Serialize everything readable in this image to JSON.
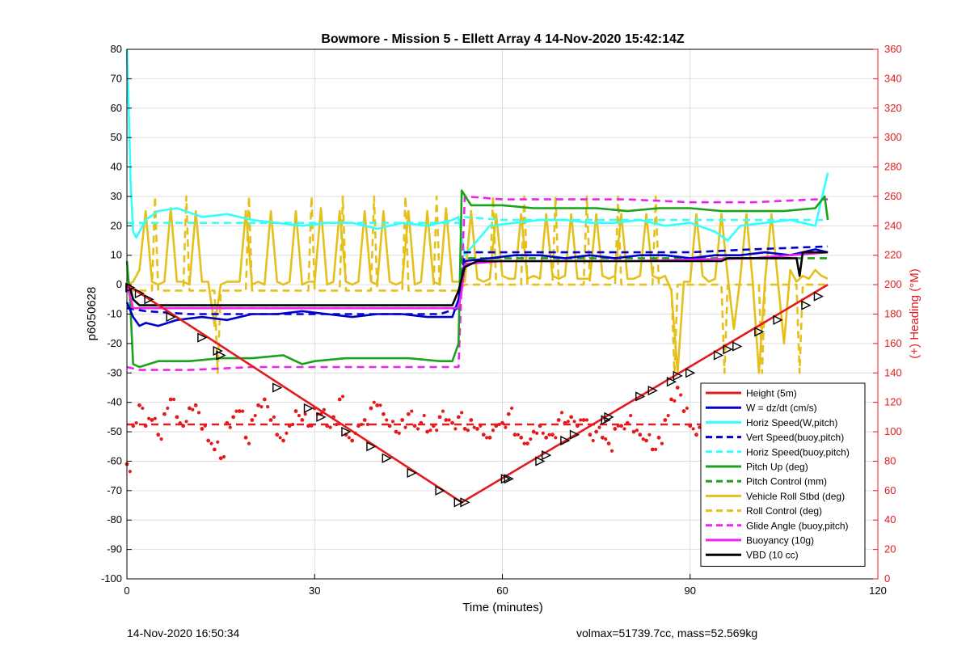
{
  "footer": {
    "timestamp": "14-Nov-2020 16:50:34",
    "volmax_mass": "volmax=51739.7cc, mass=52.569kg"
  },
  "chart_data": {
    "type": "line",
    "title": "Bowmore - Mission 5 - Ellett Array 4 14-Nov-2020 15:42:14Z",
    "xlabel": "Time (minutes)",
    "ylabel": "p6050628",
    "y2label": "(+) Heading (°M)",
    "xlim": [
      0,
      120
    ],
    "ylim": [
      -100,
      80
    ],
    "y2lim": [
      0,
      360
    ],
    "xticks": [
      0,
      30,
      60,
      90,
      120
    ],
    "yticks": [
      -100,
      -90,
      -80,
      -70,
      -60,
      -50,
      -40,
      -30,
      -20,
      -10,
      0,
      10,
      20,
      30,
      40,
      50,
      60,
      70,
      80
    ],
    "y2ticks": [
      0,
      20,
      40,
      60,
      80,
      100,
      120,
      140,
      160,
      180,
      200,
      220,
      240,
      260,
      280,
      300,
      320,
      340,
      360
    ],
    "grid": true,
    "legend_position": "lower-right",
    "legend": [
      {
        "label": "Height (5m)",
        "color": "#e41a1c",
        "style": "solid"
      },
      {
        "label": "W = dz/dt (cm/s)",
        "color": "#0000cc",
        "style": "solid"
      },
      {
        "label": "Horiz Speed(W,pitch)",
        "color": "#33ffff",
        "style": "solid"
      },
      {
        "label": "Vert Speed(buoy,pitch)",
        "color": "#0000cc",
        "style": "dashed"
      },
      {
        "label": "Horiz Speed(buoy,pitch)",
        "color": "#33ffff",
        "style": "dashed"
      },
      {
        "label": "Pitch Up (deg)",
        "color": "#1aa31a",
        "style": "solid"
      },
      {
        "label": "Pitch Control (mm)",
        "color": "#1aa31a",
        "style": "dashed"
      },
      {
        "label": "Vehicle Roll Stbd (deg)",
        "color": "#e6c01a",
        "style": "solid"
      },
      {
        "label": "Roll Control (deg)",
        "color": "#e6c01a",
        "style": "dashed"
      },
      {
        "label": "Glide Angle (buoy,pitch)",
        "color": "#ee22ee",
        "style": "dashed"
      },
      {
        "label": "Buoyancy (10g)",
        "color": "#ee22ee",
        "style": "solid"
      },
      {
        "label": "VBD (10 cc)",
        "color": "#000000",
        "style": "solid"
      }
    ],
    "series": [
      {
        "name": "Height (5m)",
        "color": "#e41a1c",
        "axis": "left",
        "style": "solid",
        "x": [
          0,
          53.5,
          112
        ],
        "y": [
          0,
          -74,
          0
        ]
      },
      {
        "name": "Height markers",
        "color": "#000000",
        "axis": "left",
        "marker": "triangle",
        "x": [
          0.5,
          2,
          3.5,
          7,
          12,
          14.5,
          15,
          24,
          29,
          31,
          35,
          39,
          41.5,
          45.5,
          50,
          53,
          54,
          60.5,
          61,
          66,
          67,
          70,
          71.5,
          76.5,
          77,
          82,
          84,
          87,
          88,
          90,
          94.5,
          96,
          97.5,
          101,
          104,
          108.5,
          110.5
        ],
        "y": [
          -1,
          -3,
          -5,
          -11,
          -18,
          -22.5,
          -24,
          -35,
          -42,
          -45,
          -50,
          -55,
          -59,
          -64,
          -70,
          -74,
          -74,
          -66,
          -66,
          -60,
          -58,
          -53,
          -51,
          -46,
          -45,
          -38,
          -36,
          -33,
          -31,
          -30,
          -24,
          -22,
          -21,
          -16,
          -12,
          -7,
          -4
        ]
      },
      {
        "name": "W = dz/dt (cm/s)",
        "color": "#0000cc",
        "axis": "left",
        "style": "solid",
        "x": [
          0,
          1,
          2,
          3,
          5,
          8,
          12,
          16,
          20,
          24,
          28,
          32,
          36,
          40,
          44,
          48,
          52,
          53,
          54,
          58,
          62,
          66,
          70,
          74,
          78,
          82,
          86,
          90,
          94,
          98,
          102,
          106,
          110,
          112
        ],
        "y": [
          -6,
          -11,
          -14,
          -13,
          -14,
          -12,
          -11,
          -12,
          -10,
          -10,
          -9,
          -10,
          -11,
          -10,
          -10,
          -11,
          -11,
          -5,
          8,
          9,
          10,
          10,
          9,
          10,
          9,
          10,
          10,
          9,
          10,
          10,
          11,
          10,
          12,
          11
        ]
      },
      {
        "name": "Horiz Speed(W,pitch)",
        "color": "#33ffff",
        "axis": "left",
        "style": "solid",
        "x": [
          0,
          0.3,
          0.6,
          1,
          1.5,
          3,
          5,
          8,
          12,
          16,
          20,
          24,
          28,
          32,
          36,
          40,
          44,
          48,
          52,
          53,
          54,
          58,
          62,
          66,
          70,
          74,
          78,
          82,
          86,
          90,
          94,
          96,
          98,
          102,
          106,
          110,
          112
        ],
        "y": [
          80,
          60,
          35,
          18,
          16,
          22,
          25,
          26,
          23,
          24,
          22,
          21,
          20,
          21,
          21,
          19,
          21,
          20,
          22,
          23,
          10,
          20,
          21,
          22,
          22,
          21,
          21,
          22,
          20,
          21,
          18,
          15,
          20,
          21,
          22,
          20,
          38
        ]
      },
      {
        "name": "Vert Speed(buoy,pitch)",
        "color": "#0000cc",
        "axis": "left",
        "style": "dashed",
        "x": [
          0,
          3,
          10,
          20,
          30,
          40,
          50,
          53,
          54,
          60,
          70,
          80,
          90,
          100,
          112
        ],
        "y": [
          -8,
          -9,
          -10,
          -10,
          -10,
          -10,
          -10,
          -8,
          11,
          11,
          11,
          11,
          11,
          12,
          13
        ]
      },
      {
        "name": "Horiz Speed(buoy,pitch)",
        "color": "#33ffff",
        "axis": "left",
        "style": "dashed",
        "x": [
          0,
          3,
          10,
          20,
          30,
          40,
          50,
          53,
          54,
          60,
          70,
          80,
          90,
          100,
          112
        ],
        "y": [
          21,
          21,
          21,
          21,
          21,
          21,
          21,
          21,
          23,
          22,
          22,
          22,
          22,
          22,
          22
        ]
      },
      {
        "name": "Pitch Up (deg)",
        "color": "#1aa31a",
        "axis": "left",
        "style": "solid",
        "x": [
          0,
          0.5,
          1,
          2,
          5,
          10,
          15,
          20,
          25,
          28,
          30,
          35,
          40,
          45,
          50,
          52,
          53,
          53.5,
          55,
          60,
          65,
          70,
          75,
          80,
          85,
          90,
          95,
          100,
          105,
          110,
          111.5,
          112
        ],
        "y": [
          8,
          -5,
          -27,
          -28,
          -26,
          -26,
          -25,
          -25,
          -24,
          -27,
          -26,
          -25,
          -25,
          -25,
          -26,
          -26,
          -20,
          32,
          27,
          27,
          26,
          26,
          26,
          25,
          26,
          26,
          25,
          25,
          25,
          26,
          30,
          22
        ]
      },
      {
        "name": "Pitch Control (mm)",
        "color": "#1aa31a",
        "axis": "left",
        "style": "dashed",
        "x": [
          0,
          53,
          53.5,
          112
        ],
        "y": [
          -8,
          -8,
          9,
          9
        ]
      },
      {
        "name": "Vehicle Roll Stbd (deg)",
        "color": "#e6c01a",
        "axis": "left",
        "style": "solid",
        "x": [
          0,
          1,
          2,
          3,
          4,
          5,
          6,
          7,
          8,
          9,
          10,
          11,
          12,
          13,
          14,
          15,
          16,
          17,
          18,
          19,
          20,
          21,
          22,
          23,
          24,
          25,
          26,
          27,
          28,
          29,
          30,
          31,
          32,
          33,
          34,
          35,
          36,
          37,
          38,
          39,
          40,
          41,
          42,
          43,
          44,
          45,
          46,
          47,
          48,
          49,
          50,
          51,
          52,
          53,
          54,
          55,
          56,
          57,
          58,
          59,
          60,
          61,
          62,
          63,
          64,
          65,
          66,
          67,
          68,
          69,
          70,
          71,
          72,
          73,
          74,
          75,
          76,
          77,
          78,
          79,
          80,
          81,
          82,
          83,
          84,
          85,
          86,
          87,
          88,
          89,
          90,
          91,
          92,
          93,
          94,
          95,
          96,
          97,
          98,
          99,
          100,
          101,
          102,
          103,
          104,
          105,
          106,
          107,
          108,
          109,
          110,
          111,
          112
        ],
        "y": [
          0,
          1,
          5,
          25,
          1,
          0,
          1,
          26,
          1,
          1,
          0,
          25,
          1,
          1,
          -14,
          0,
          1,
          1,
          1,
          25,
          0,
          1,
          0,
          25,
          1,
          0,
          1,
          25,
          0,
          1,
          1,
          26,
          0,
          1,
          25,
          1,
          0,
          1,
          25,
          1,
          0,
          25,
          1,
          0,
          1,
          25,
          0,
          1,
          25,
          1,
          0,
          26,
          1,
          1,
          1,
          25,
          2,
          1,
          2,
          24,
          3,
          2,
          2,
          24,
          2,
          3,
          2,
          24,
          3,
          2,
          3,
          24,
          2,
          2,
          2,
          24,
          3,
          2,
          3,
          24,
          2,
          2,
          3,
          24,
          3,
          2,
          3,
          -2,
          -30,
          1,
          1,
          24,
          3,
          1,
          2,
          24,
          3,
          -15,
          2,
          24,
          1,
          -30,
          2,
          24,
          2,
          -20,
          5,
          1,
          3,
          2,
          5,
          3,
          2
        ]
      },
      {
        "name": "Roll Control (deg)",
        "color": "#e6c01a",
        "axis": "left",
        "style": "dashed",
        "x": [
          0,
          4,
          4.5,
          5,
          9,
          9.5,
          10,
          14,
          14.5,
          15,
          19,
          19.5,
          20,
          29,
          29.5,
          30,
          34,
          34.5,
          35,
          39,
          39.5,
          40,
          44,
          44.5,
          45,
          49,
          49.5,
          50,
          53,
          54,
          58,
          58.5,
          59,
          63,
          63.5,
          64,
          68,
          68.5,
          69,
          73,
          73.5,
          74,
          78,
          78.5,
          79,
          84,
          84.5,
          85,
          87,
          87.5,
          88,
          95,
          95.5,
          96,
          101,
          101.5,
          102,
          107,
          107.5,
          108,
          112
        ],
        "y": [
          -2,
          -2,
          30,
          -2,
          -2,
          30,
          -2,
          -2,
          -30,
          -2,
          -2,
          30,
          -2,
          -2,
          30,
          -2,
          -2,
          30,
          -2,
          -2,
          30,
          -2,
          -2,
          30,
          -2,
          -2,
          30,
          -2,
          -2,
          0,
          0,
          30,
          0,
          0,
          30,
          0,
          0,
          30,
          0,
          0,
          30,
          0,
          0,
          30,
          0,
          0,
          30,
          0,
          0,
          -30,
          0,
          0,
          -30,
          0,
          0,
          -30,
          0,
          0,
          -30,
          0,
          0
        ]
      },
      {
        "name": "Glide Angle (buoy,pitch)",
        "color": "#ee22ee",
        "axis": "left",
        "style": "dashed",
        "x": [
          0,
          2,
          10,
          20,
          30,
          40,
          50,
          53,
          54,
          60,
          70,
          80,
          90,
          100,
          110,
          112
        ],
        "y": [
          -28,
          -29,
          -29,
          -28,
          -28,
          -28,
          -28,
          -28,
          30,
          29,
          29,
          29,
          28,
          28,
          29,
          29
        ]
      },
      {
        "name": "Buoyancy (10g)",
        "color": "#ee22ee",
        "axis": "left",
        "style": "solid",
        "x": [
          0,
          1,
          53,
          53.5,
          54,
          60,
          80,
          100,
          112
        ],
        "y": [
          0,
          -8,
          -8,
          -2,
          7,
          8,
          8,
          9,
          11
        ]
      },
      {
        "name": "VBD (10 cc)",
        "color": "#000000",
        "axis": "left",
        "style": "solid",
        "x": [
          0,
          0.5,
          1,
          2,
          3,
          52,
          53,
          54,
          55,
          56,
          70,
          76,
          77,
          95,
          96,
          100,
          105,
          107,
          107.5,
          108,
          112
        ],
        "y": [
          0,
          -1,
          -5,
          -7,
          -7,
          -7,
          -2,
          6,
          7,
          8,
          8,
          8,
          8,
          8,
          9,
          9,
          9,
          9,
          3,
          11,
          11
        ]
      },
      {
        "name": "Heading",
        "color": "#e41a1c",
        "axis": "right",
        "style": "dots",
        "x": [
          0,
          1,
          2,
          3,
          4,
          5,
          6,
          7,
          8,
          9,
          10,
          11,
          12,
          13,
          14,
          15,
          16,
          17,
          18,
          19,
          20,
          21,
          22,
          23,
          24,
          25,
          26,
          27,
          28,
          29,
          30,
          31,
          32,
          33,
          34,
          35,
          36,
          37,
          38,
          39,
          40,
          41,
          42,
          43,
          44,
          45,
          46,
          47,
          48,
          49,
          50,
          51,
          52,
          53,
          54,
          55,
          56,
          57,
          58,
          59,
          60,
          61,
          62,
          63,
          64,
          65,
          66,
          67,
          68,
          69,
          70,
          71,
          72,
          73,
          74,
          75,
          76,
          77,
          78,
          79,
          80,
          81,
          82,
          83,
          84,
          85,
          86,
          87,
          88,
          89,
          90,
          91,
          92,
          93,
          94,
          95,
          96,
          97,
          98,
          99,
          100,
          101,
          102,
          103,
          104,
          105,
          106,
          107,
          108,
          109,
          110,
          111
        ],
        "y": [
          78,
          104,
          118,
          104,
          108,
          98,
          112,
          122,
          110,
          104,
          116,
          118,
          102,
          94,
          88,
          82,
          106,
          110,
          114,
          96,
          108,
          118,
          122,
          108,
          98,
          94,
          104,
          114,
          108,
          104,
          116,
          112,
          104,
          110,
          122,
          98,
          94,
          104,
          108,
          116,
          118,
          112,
          104,
          100,
          108,
          112,
          104,
          106,
          100,
          104,
          110,
          108,
          106,
          110,
          102,
          108,
          102,
          98,
          96,
          104,
          106,
          112,
          98,
          96,
          92,
          100,
          104,
          96,
          98,
          108,
          106,
          110,
          104,
          108,
          98,
          100,
          96,
          92,
          102,
          104,
          106,
          100,
          98,
          94,
          88,
          96,
          108,
          122,
          130,
          114,
          104,
          98,
          96,
          82,
          88,
          96,
          110,
          124,
          98,
          102,
          104,
          112,
          108,
          124,
          118,
          128,
          112,
          124,
          110,
          98,
          114,
          108
        ]
      },
      {
        "name": "Heading mean",
        "color": "#e41a1c",
        "axis": "right",
        "style": "dashed",
        "x": [
          0,
          112
        ],
        "y": [
          105,
          105
        ]
      }
    ]
  }
}
